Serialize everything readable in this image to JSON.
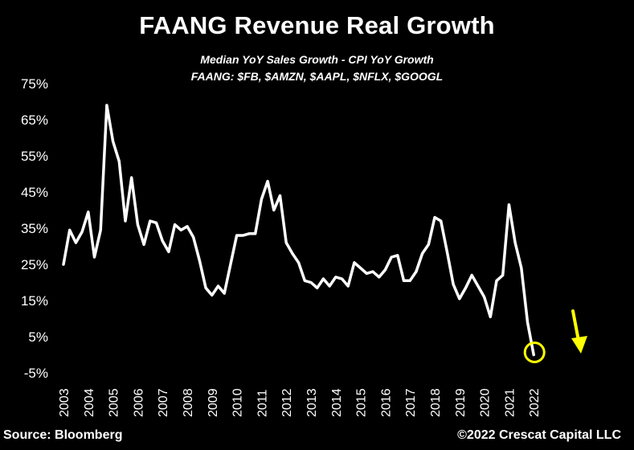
{
  "chart_data": {
    "type": "line",
    "title": "FAANG Revenue Real Growth",
    "subtitle": [
      "Median YoY Sales Growth - CPI YoY Growth",
      "FAANG: $FB, $AMZN, $AAPL, $NFLX, $GOOGL"
    ],
    "xlabel": "",
    "ylabel": "",
    "ylim": [
      -5,
      75
    ],
    "xlim": [
      2003,
      2023
    ],
    "yticks": [
      -5,
      5,
      15,
      25,
      35,
      45,
      55,
      65,
      75
    ],
    "ytick_labels": [
      "-5%",
      "5%",
      "15%",
      "25%",
      "35%",
      "45%",
      "55%",
      "65%",
      "75%"
    ],
    "xticks": [
      2003,
      2004,
      2005,
      2006,
      2007,
      2008,
      2009,
      2010,
      2011,
      2012,
      2013,
      2014,
      2015,
      2016,
      2017,
      2018,
      2019,
      2020,
      2021,
      2022
    ],
    "xtick_labels": [
      "2003",
      "2004",
      "2005",
      "2006",
      "2007",
      "2008",
      "2009",
      "2010",
      "2011",
      "2012",
      "2013",
      "2014",
      "2015",
      "2016",
      "2017",
      "2018",
      "2019",
      "2020",
      "2021",
      "2022"
    ],
    "grid": false,
    "series": [
      {
        "color": "#ffffff",
        "x": [
          2003.0,
          2003.25,
          2003.5,
          2003.75,
          2004.0,
          2004.25,
          2004.5,
          2004.75,
          2005.0,
          2005.25,
          2005.5,
          2005.75,
          2006.0,
          2006.25,
          2006.5,
          2006.75,
          2007.0,
          2007.25,
          2007.5,
          2007.75,
          2008.0,
          2008.25,
          2008.5,
          2008.75,
          2009.0,
          2009.25,
          2009.5,
          2009.75,
          2010.0,
          2010.25,
          2010.5,
          2010.75,
          2011.0,
          2011.25,
          2011.5,
          2011.75,
          2012.0,
          2012.25,
          2012.5,
          2012.75,
          2013.0,
          2013.25,
          2013.5,
          2013.75,
          2014.0,
          2014.25,
          2014.5,
          2014.75,
          2015.0,
          2015.25,
          2015.5,
          2015.75,
          2016.0,
          2016.25,
          2016.5,
          2016.75,
          2017.0,
          2017.25,
          2017.5,
          2017.75,
          2018.0,
          2018.25,
          2018.5,
          2018.75,
          2019.0,
          2019.25,
          2019.5,
          2019.75,
          2020.0,
          2020.25,
          2020.5,
          2020.75,
          2021.0,
          2021.25,
          2021.5,
          2021.75,
          2022.0
        ],
        "y": [
          25,
          34.5,
          31,
          34,
          39.5,
          27,
          34.5,
          69,
          59,
          53.5,
          37,
          49,
          36,
          30.5,
          37,
          36.5,
          31.5,
          28.5,
          36,
          34.5,
          35.5,
          32.5,
          26,
          18.5,
          16.5,
          19,
          17,
          25,
          33,
          33,
          33.5,
          33.5,
          43,
          48,
          40,
          44,
          31,
          28,
          25.5,
          20.5,
          20,
          18.5,
          21,
          19,
          21.5,
          21,
          19,
          25.5,
          24,
          22.5,
          23,
          21.5,
          23.5,
          27,
          27.5,
          20.5,
          20.5,
          23,
          28,
          30.5,
          38,
          37,
          28.5,
          19.5,
          15.5,
          18.5,
          22,
          19,
          16,
          10.5,
          20.5,
          22,
          41.5,
          31,
          24,
          9,
          0
        ]
      }
    ],
    "annotations": [
      {
        "type": "circle",
        "x": 2022.0,
        "y": 0,
        "color": "#ffff00"
      },
      {
        "type": "arrow",
        "direction": "down",
        "color": "#ffff00"
      }
    ]
  },
  "source": "Source: Bloomberg",
  "copyright": "©2022 Crescat Capital LLC",
  "colors": {
    "background": "#000000",
    "line": "#ffffff",
    "highlight": "#ffff00"
  }
}
